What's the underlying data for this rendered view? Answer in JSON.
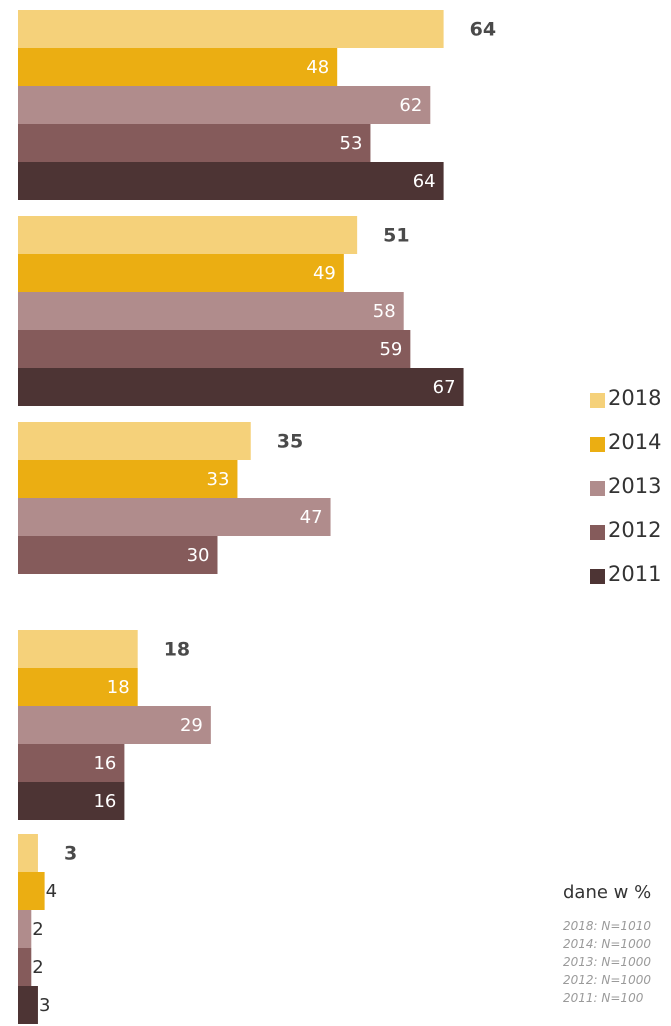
{
  "chart_data": {
    "type": "bar",
    "orientation": "horizontal",
    "categories": [
      "",
      "",
      "",
      "",
      ""
    ],
    "series": [
      {
        "name": "2018",
        "values": [
          64,
          51,
          35,
          18,
          3
        ]
      },
      {
        "name": "2014",
        "values": [
          48,
          49,
          33,
          18,
          4
        ]
      },
      {
        "name": "2013",
        "values": [
          62,
          58,
          47,
          29,
          2
        ]
      },
      {
        "name": "2012",
        "values": [
          53,
          59,
          30,
          16,
          2
        ]
      },
      {
        "name": "2011",
        "values": [
          64,
          67,
          null,
          16,
          3
        ]
      }
    ],
    "xlim": [
      0,
      100
    ],
    "grid": false,
    "legend_position": "right",
    "colors": {
      "2018": "#F5D17A",
      "2014": "#EBAE12",
      "2013": "#B08C8C",
      "2012": "#855B5B",
      "2011": "#4D3434"
    },
    "label_colors": {
      "highlight": "#4a4a4a",
      "inside": "#ffffff",
      "outside": "#333333"
    },
    "units_note": "dane w %",
    "samples": [
      "2018: N=1010",
      "2014: N=1000",
      "2013: N=1000",
      "2012: N=1000",
      "2011: N=100"
    ]
  }
}
